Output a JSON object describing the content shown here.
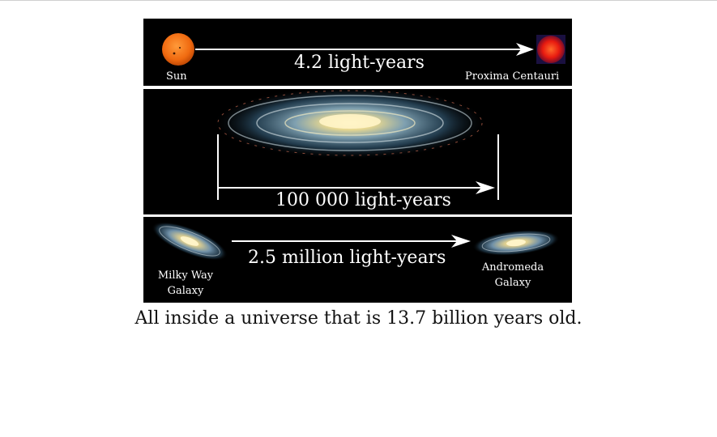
{
  "panels": {
    "sun_proxima": {
      "distance": "4.2 light-years",
      "left_label": "Sun",
      "right_label": "Proxima Centauri",
      "colors": {
        "sun": "#f06a10",
        "proxima": "#e81a10"
      }
    },
    "milky_way": {
      "distance": "100 000 light-years"
    },
    "milkyway_andromeda": {
      "distance": "2.5 million light-years",
      "left_label_line1": "Milky Way",
      "left_label_line2": "Galaxy",
      "right_label_line1": "Andromeda",
      "right_label_line2": "Galaxy"
    }
  },
  "caption": "All inside a universe that is 13.7 billion years old."
}
